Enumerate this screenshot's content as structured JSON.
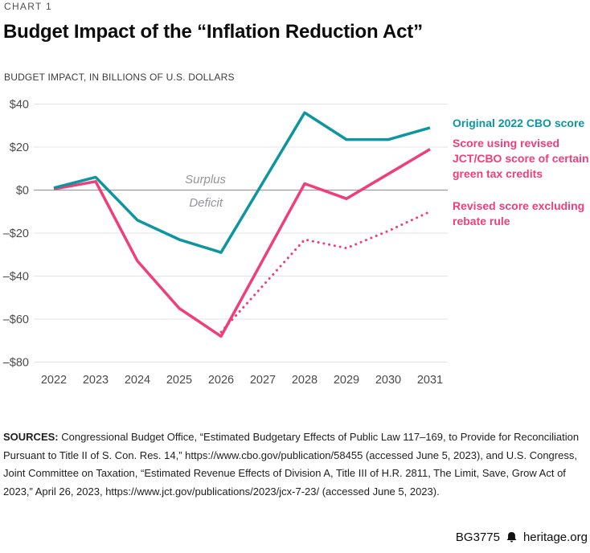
{
  "header": {
    "kicker": "CHART 1",
    "title": "Budget Impact of the “Inflation Reduction Act”",
    "subtitle": "BUDGET IMPACT, IN BILLIONS OF U.S. DOLLARS"
  },
  "chart_data": {
    "type": "line",
    "title": "Budget Impact of the “Inflation Reduction Act”",
    "unit": "billions of U.S. dollars",
    "x": [
      2022,
      2023,
      2024,
      2025,
      2026,
      2027,
      2028,
      2029,
      2030,
      2031
    ],
    "ylim": [
      -80,
      40
    ],
    "yticks": [
      40,
      20,
      0,
      -20,
      -40,
      -60,
      -80
    ],
    "ytick_labels": [
      "$40",
      "$20",
      "$0",
      "–$20",
      "–$40",
      "–$60",
      "–$80"
    ],
    "grid": true,
    "legend_position": "right",
    "annotations": {
      "surplus": "Surplus",
      "deficit": "Deficit"
    },
    "series": [
      {
        "name": "Original 2022 CBO score",
        "color": "#0d95a0",
        "line_style": "solid",
        "values": [
          1,
          6,
          -14,
          -23,
          -29,
          3.5,
          36,
          23.5,
          23.5,
          29
        ]
      },
      {
        "name": "Score using revised JCT/CBO score of certain green tax credits",
        "color": "#f03e78",
        "line_style": "solid",
        "values": [
          0.5,
          4,
          -33,
          -55,
          -68,
          -32.5,
          3,
          -4,
          7.5,
          19
        ]
      },
      {
        "name": "Revised score excluding rebate rule",
        "color": "#f03e78",
        "line_style": "dotted",
        "values": [
          null,
          null,
          null,
          null,
          -66,
          -44.5,
          -23,
          -27,
          -19,
          -10
        ]
      }
    ]
  },
  "sources": {
    "label": "SOURCES:",
    "text": " Congressional Budget Office, “Estimated Budgetary Effects of Public Law 117–169, to Provide for Reconciliation Pursuant to Title II of S. Con. Res. 14,” https://www.cbo.gov/publication/58455 (accessed June 5, 2023), and U.S. Congress, Joint Committee on Taxation, “Estimated Revenue Effects of Division A, Title III of H.R. 2811, The Limit, Save, Grow Act of 2023,” April 26, 2023, https://www.jct.gov/publications/2023/jcx-7-23/ (accessed June 5, 2023)."
  },
  "footer": {
    "report_id": "BG3775",
    "site": "heritage.org",
    "logo_icon": "liberty-bell-icon"
  },
  "colors": {
    "teal": "#0d95a0",
    "pink": "#f03e78",
    "grid": "#e3e3e3",
    "zero_line": "#9b9b9b",
    "tick_text": "#4a4a4a",
    "annotation_text": "#95959a"
  }
}
